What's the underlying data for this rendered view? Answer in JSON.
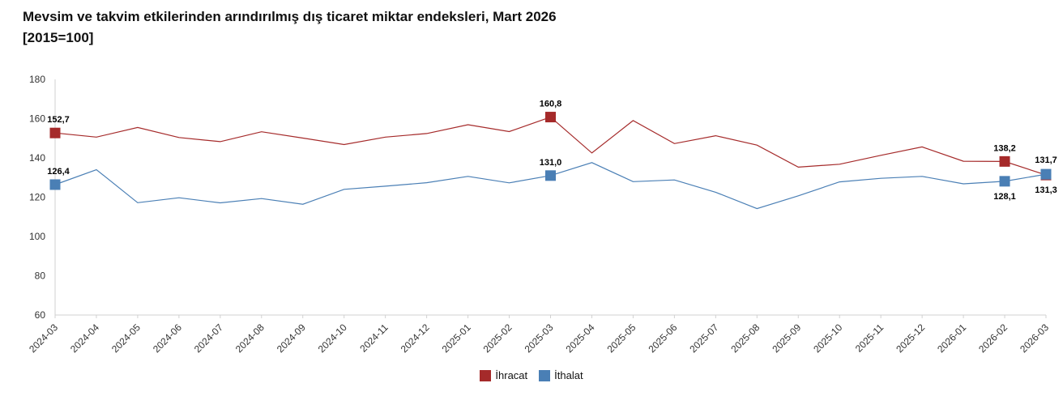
{
  "header": {
    "title_line1": "Mevsim ve takvim etkilerinden arındırılmış dış ticaret miktar endeksleri, Mart 2026",
    "title_line2": "[2015=100]"
  },
  "colors": {
    "ihracat": "#a52a2a",
    "ithalat": "#4a7fb5",
    "grid": "#e4e4e4"
  },
  "chart_data": {
    "type": "line",
    "title": "Mevsim ve takvim etkilerinden arındırılmış dış ticaret miktar endeksleri, Mart 2026 [2015=100]",
    "xlabel": "",
    "ylabel": "",
    "ylim": [
      60,
      180
    ],
    "yticks": [
      60,
      80,
      100,
      120,
      140,
      160,
      180
    ],
    "legend_position": "bottom",
    "categories": [
      "2024-03",
      "2024-04",
      "2024-05",
      "2024-06",
      "2024-07",
      "2024-08",
      "2024-09",
      "2024-10",
      "2024-11",
      "2024-12",
      "2025-01",
      "2025-02",
      "2025-03",
      "2025-04",
      "2025-05",
      "2025-06",
      "2025-07",
      "2025-08",
      "2025-09",
      "2025-10",
      "2025-11",
      "2025-12",
      "2026-01",
      "2026-02",
      "2026-03"
    ],
    "series": [
      {
        "name": "İhracat",
        "color": "#a52a2a",
        "values": [
          152.7,
          150.6,
          155.5,
          150.4,
          148.3,
          153.3,
          150.1,
          146.8,
          150.6,
          152.4,
          156.9,
          153.4,
          160.8,
          142.5,
          159.0,
          147.3,
          151.3,
          146.5,
          135.3,
          136.8,
          141.3,
          145.6,
          138.3,
          138.2,
          131.3
        ],
        "labeled": [
          {
            "index": 0,
            "text": "152,7"
          },
          {
            "index": 12,
            "text": "160,8"
          },
          {
            "index": 23,
            "text": "138,2"
          },
          {
            "index": 24,
            "text": "131,3"
          }
        ]
      },
      {
        "name": "İthalat",
        "color": "#4a7fb5",
        "values": [
          126.4,
          134.0,
          117.2,
          119.7,
          117.1,
          119.3,
          116.4,
          124.0,
          125.6,
          127.4,
          130.6,
          127.3,
          131.0,
          137.6,
          127.9,
          128.8,
          122.5,
          114.2,
          120.7,
          127.8,
          129.6,
          130.6,
          126.8,
          128.1,
          131.7
        ],
        "labeled": [
          {
            "index": 0,
            "text": "126,4"
          },
          {
            "index": 12,
            "text": "131,0"
          },
          {
            "index": 23,
            "text": "128,1"
          },
          {
            "index": 24,
            "text": "131,7"
          }
        ]
      }
    ]
  }
}
